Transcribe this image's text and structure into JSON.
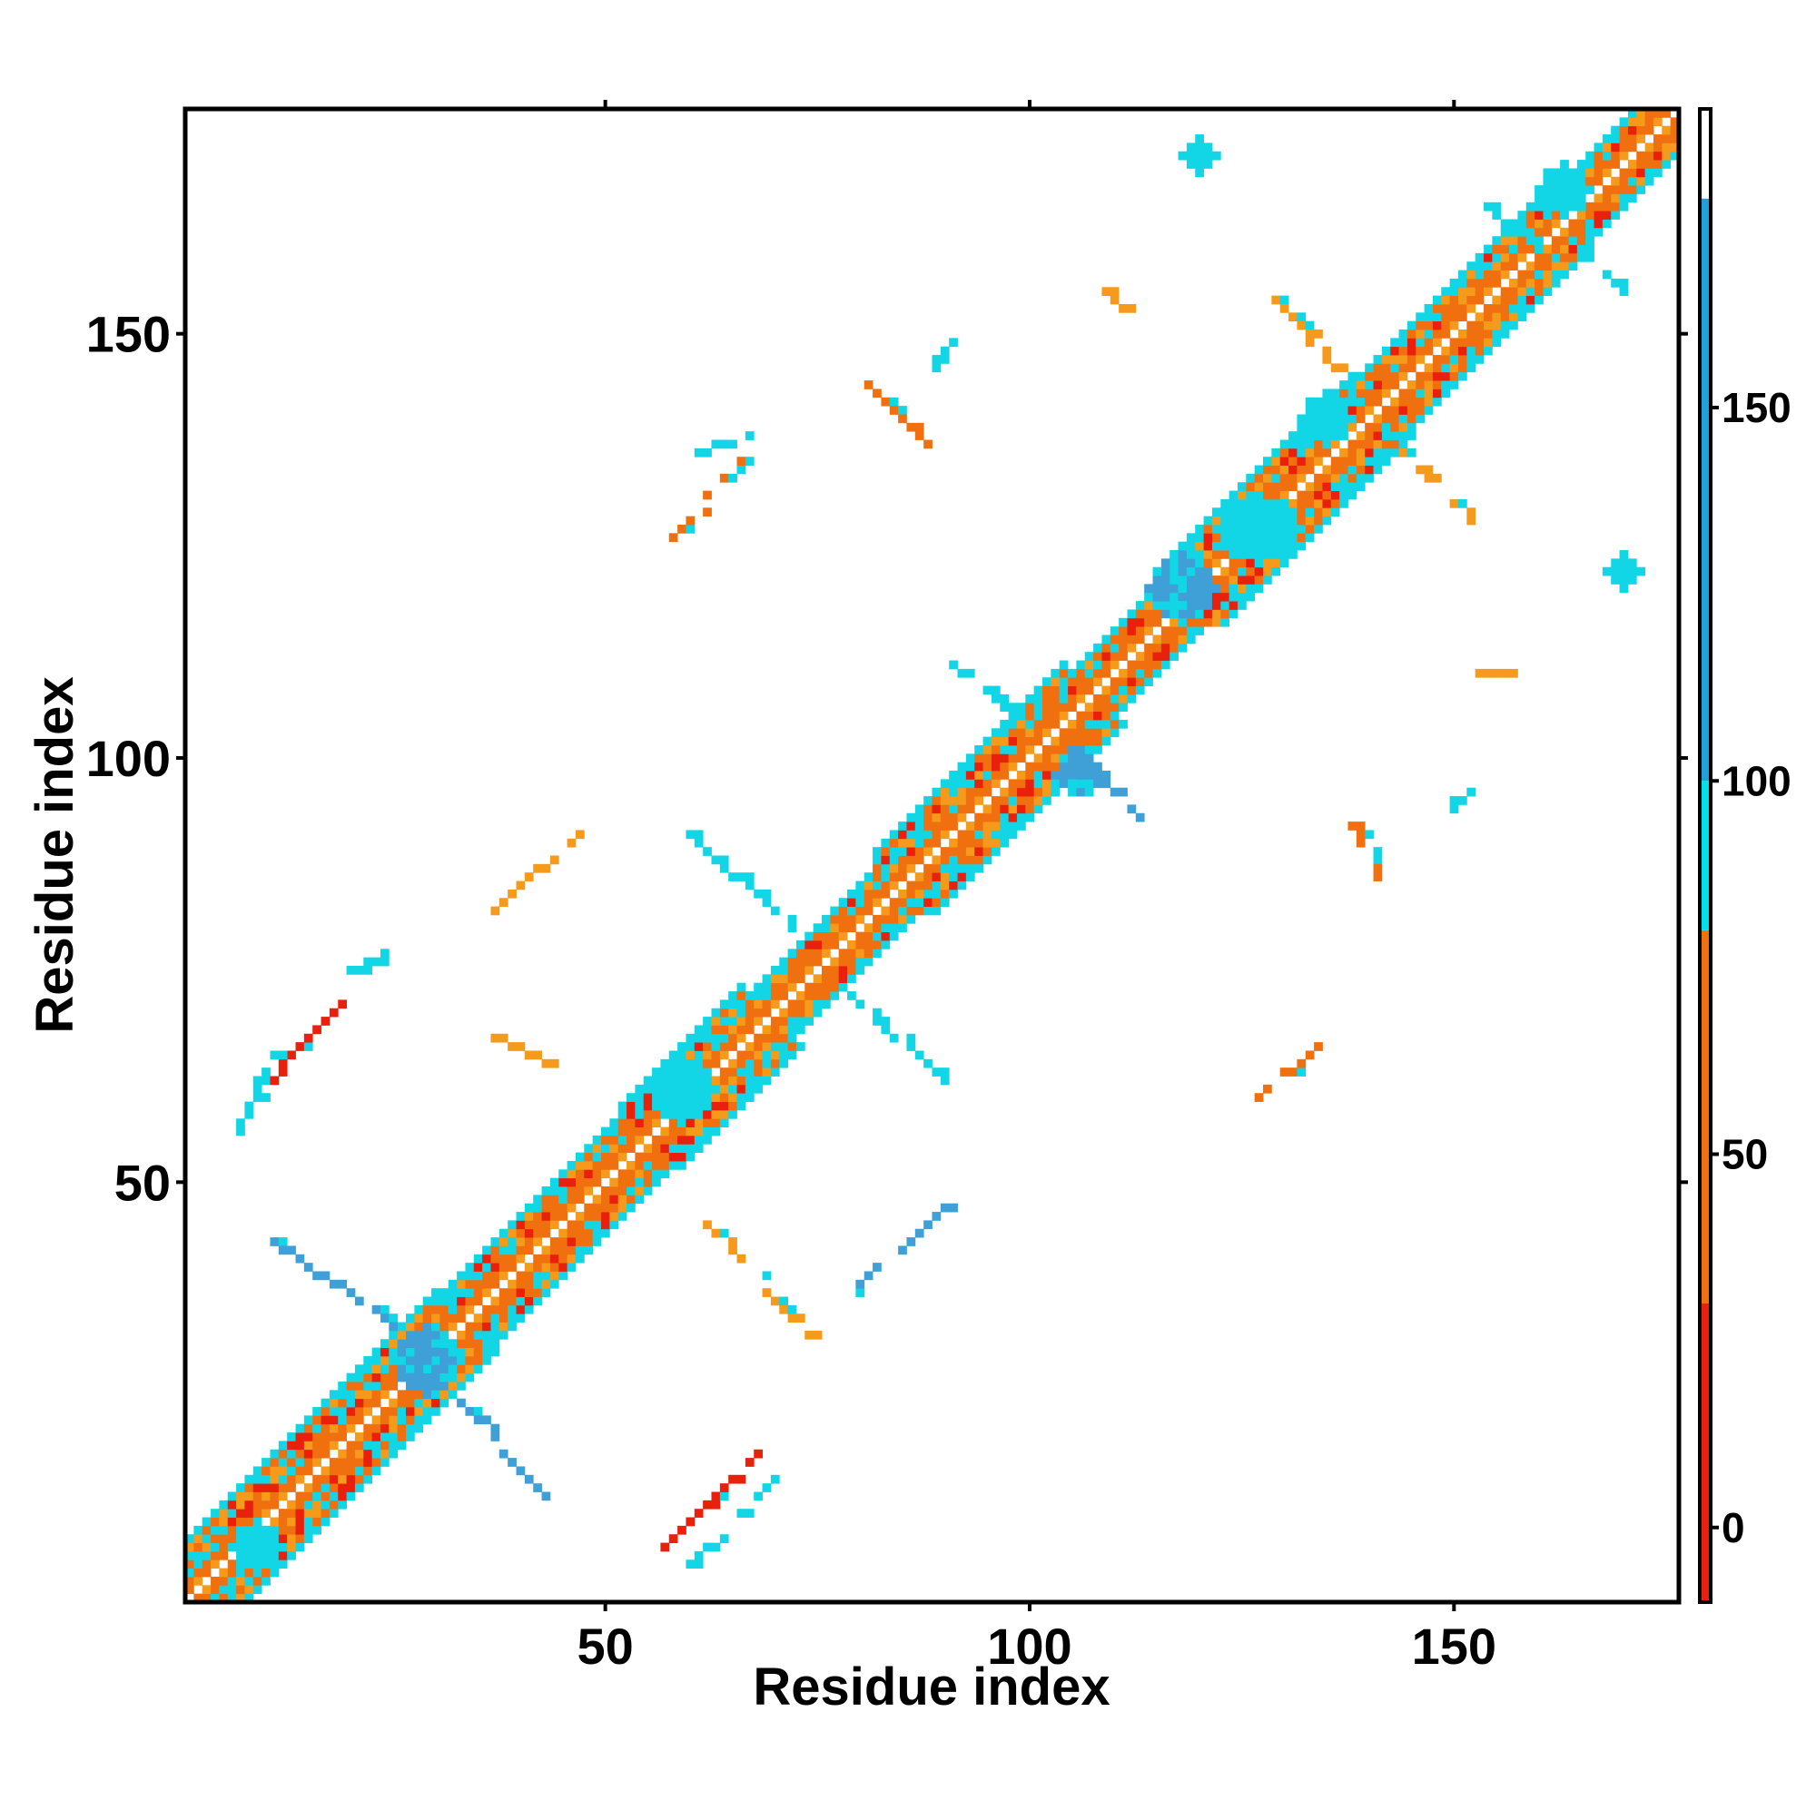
{
  "chart_data": {
    "type": "heatmap",
    "title": "",
    "xlabel": "Residue index",
    "ylabel": "Residue index",
    "n_residues": 176,
    "xlim": [
      0.5,
      176.5
    ],
    "ylim": [
      0.5,
      176.5
    ],
    "x_ticks": [
      50,
      100,
      150
    ],
    "y_ticks": [
      50,
      100,
      150
    ],
    "colorbar": {
      "range": [
        -10,
        190
      ],
      "ticks": [
        0,
        50,
        100,
        150
      ],
      "bands": [
        {
          "from": -10,
          "to": 30,
          "color": "#e8200c"
        },
        {
          "from": 30,
          "to": 80,
          "color": "#f07010"
        },
        {
          "from": 80,
          "to": 100,
          "color": "#00e0e8"
        },
        {
          "from": 100,
          "to": 178,
          "color": "#1ea0d8"
        },
        {
          "from": 178,
          "to": 190,
          "color": "#ffffff"
        }
      ]
    },
    "contact_classes": [
      {
        "name": "red",
        "color": "#e8200c"
      },
      {
        "name": "orange",
        "color": "#f07010"
      },
      {
        "name": "light-orange",
        "color": "#f59a1a"
      },
      {
        "name": "cyan",
        "color": "#12d6e6"
      },
      {
        "name": "blue",
        "color": "#3ea0d6"
      }
    ],
    "diagonal_bands": [
      {
        "from": 1,
        "to": 30,
        "width": 7
      },
      {
        "from": 30,
        "to": 52,
        "width": 6
      },
      {
        "from": 52,
        "to": 66,
        "width": 7
      },
      {
        "from": 66,
        "to": 82,
        "width": 5
      },
      {
        "from": 82,
        "to": 104,
        "width": 7
      },
      {
        "from": 104,
        "to": 116,
        "width": 5
      },
      {
        "from": 116,
        "to": 138,
        "width": 7
      },
      {
        "from": 138,
        "to": 160,
        "width": 6
      },
      {
        "from": 160,
        "to": 176,
        "width": 5
      }
    ],
    "blobs": [
      {
        "x": 120,
        "y": 171,
        "rx": 2,
        "ry": 2,
        "class": "cyan"
      },
      {
        "x": 170,
        "y": 122,
        "rx": 2,
        "ry": 2,
        "class": "cyan"
      },
      {
        "x": 163,
        "y": 167,
        "rx": 3,
        "ry": 3,
        "class": "cyan"
      },
      {
        "x": 135,
        "y": 140,
        "rx": 3,
        "ry": 3,
        "class": "cyan"
      },
      {
        "x": 118,
        "y": 120,
        "rx": 4,
        "ry": 4,
        "class": "blue"
      },
      {
        "x": 127,
        "y": 127,
        "rx": 5,
        "ry": 4,
        "class": "cyan"
      },
      {
        "x": 106,
        "y": 98,
        "rx": 3,
        "ry": 2,
        "class": "blue"
      },
      {
        "x": 59,
        "y": 61,
        "rx": 4,
        "ry": 4,
        "class": "cyan"
      },
      {
        "x": 29,
        "y": 29,
        "rx": 4,
        "ry": 4,
        "class": "blue"
      },
      {
        "x": 9,
        "y": 7,
        "rx": 3,
        "ry": 3,
        "class": "cyan"
      }
    ],
    "lines": [
      {
        "x0": 9,
        "y0": 61,
        "x1": 19,
        "y1": 71,
        "class": "red"
      },
      {
        "x0": 7,
        "y0": 56,
        "x1": 11,
        "y1": 66,
        "class": "cyan"
      },
      {
        "x0": 57,
        "y0": 7,
        "x1": 68,
        "y1": 18,
        "class": "red"
      },
      {
        "x0": 60,
        "y0": 5,
        "x1": 70,
        "y1": 15,
        "class": "cyan"
      },
      {
        "x0": 11,
        "y0": 43,
        "x1": 28,
        "y1": 31,
        "class": "blue"
      },
      {
        "x0": 31,
        "y0": 26,
        "x1": 43,
        "y1": 13,
        "class": "blue"
      },
      {
        "x0": 58,
        "y0": 126,
        "x1": 66,
        "y1": 135,
        "class": "orange"
      },
      {
        "x0": 125,
        "y0": 58,
        "x1": 135,
        "y1": 67,
        "class": "orange"
      },
      {
        "x0": 60,
        "y0": 91,
        "x1": 72,
        "y1": 80,
        "class": "cyan"
      },
      {
        "x0": 79,
        "y0": 72,
        "x1": 91,
        "y1": 61,
        "class": "cyan"
      },
      {
        "x0": 91,
        "y0": 111,
        "x1": 100,
        "y1": 104,
        "class": "cyan"
      },
      {
        "x0": 105,
        "y0": 101,
        "x1": 113,
        "y1": 93,
        "class": "blue"
      },
      {
        "x0": 129,
        "y0": 154,
        "x1": 136,
        "y1": 146,
        "class": "light-orange"
      },
      {
        "x0": 142,
        "y0": 138,
        "x1": 152,
        "y1": 128,
        "class": "light-orange"
      },
      {
        "x0": 154,
        "y0": 165,
        "x1": 160,
        "y1": 160,
        "class": "cyan"
      },
      {
        "x0": 165,
        "y0": 160,
        "x1": 170,
        "y1": 155,
        "class": "cyan"
      },
      {
        "x0": 19,
        "y0": 74,
        "x1": 24,
        "y1": 77,
        "class": "cyan"
      },
      {
        "x0": 37,
        "y0": 82,
        "x1": 47,
        "y1": 91,
        "class": "light-orange"
      },
      {
        "x0": 37,
        "y0": 67,
        "x1": 43,
        "y1": 64,
        "class": "light-orange"
      },
      {
        "x0": 62,
        "y0": 45,
        "x1": 74,
        "y1": 32,
        "class": "light-orange"
      },
      {
        "x0": 79,
        "y0": 37,
        "x1": 90,
        "y1": 47,
        "class": "blue"
      },
      {
        "x0": 81,
        "y0": 144,
        "x1": 88,
        "y1": 137,
        "class": "orange"
      },
      {
        "x0": 88,
        "y0": 146,
        "x1": 91,
        "y1": 149,
        "class": "cyan"
      },
      {
        "x0": 61,
        "y0": 136,
        "x1": 67,
        "y1": 138,
        "class": "cyan"
      },
      {
        "x0": 138,
        "y0": 92,
        "x1": 141,
        "y1": 86,
        "class": "orange"
      },
      {
        "x0": 149,
        "y0": 94,
        "x1": 152,
        "y1": 96,
        "class": "cyan"
      },
      {
        "x0": 153,
        "y0": 110,
        "x1": 156,
        "y1": 110,
        "class": "light-orange"
      },
      {
        "x0": 109,
        "y0": 155,
        "x1": 111,
        "y1": 153,
        "class": "light-orange"
      }
    ]
  }
}
